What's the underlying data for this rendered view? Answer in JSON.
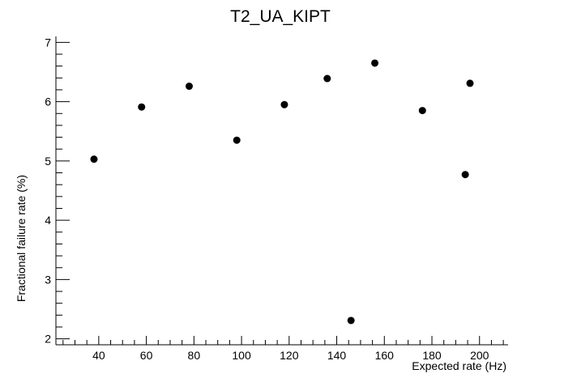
{
  "chart_data": {
    "type": "scatter",
    "title": "T2_UA_KIPT",
    "xlabel": "Expected rate (Hz)",
    "ylabel": "Fractional failure rate (%)",
    "xlim": [
      22,
      212
    ],
    "ylim": [
      1.9,
      7.1
    ],
    "x_ticks": [
      40,
      60,
      80,
      100,
      120,
      140,
      160,
      180,
      200
    ],
    "y_ticks": [
      2,
      3,
      4,
      5,
      6,
      7
    ],
    "grid": false,
    "legend": "none",
    "marker_color": "#000000",
    "points": [
      {
        "x": 38,
        "y": 5.03
      },
      {
        "x": 58,
        "y": 5.91
      },
      {
        "x": 78,
        "y": 6.26
      },
      {
        "x": 98,
        "y": 5.35
      },
      {
        "x": 118,
        "y": 5.95
      },
      {
        "x": 136,
        "y": 6.39
      },
      {
        "x": 146,
        "y": 2.31
      },
      {
        "x": 156,
        "y": 6.65
      },
      {
        "x": 176,
        "y": 5.85
      },
      {
        "x": 194,
        "y": 4.77
      },
      {
        "x": 196,
        "y": 6.31
      }
    ]
  }
}
